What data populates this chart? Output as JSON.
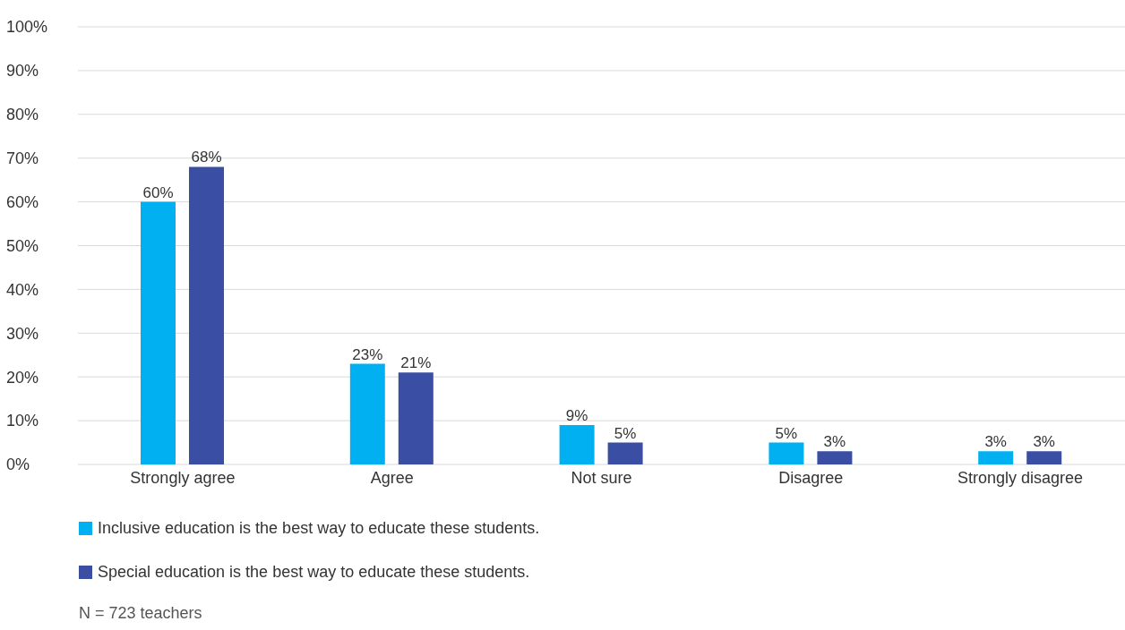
{
  "chart_data": {
    "type": "bar",
    "categories": [
      "Strongly agree",
      "Agree",
      "Not sure",
      "Disagree",
      "Strongly disagree"
    ],
    "series": [
      {
        "name": "Inclusive education is the best way to educate these students.",
        "color": "#00b0f0",
        "values": [
          60,
          23,
          9,
          5,
          3
        ],
        "value_labels": [
          "60%",
          "23%",
          "9%",
          "5%",
          "3%"
        ]
      },
      {
        "name": "Special education is the best way to educate these students.",
        "color": "#3a4fa3",
        "values": [
          68,
          21,
          5,
          3,
          3
        ],
        "value_labels": [
          "68%",
          "21%",
          "5%",
          "3%",
          "3%"
        ]
      }
    ],
    "ylim": [
      0,
      100
    ],
    "yticks": [
      {
        "value": 0,
        "label": "0%"
      },
      {
        "value": 10,
        "label": "10%"
      },
      {
        "value": 20,
        "label": "20%"
      },
      {
        "value": 30,
        "label": "30%"
      },
      {
        "value": 40,
        "label": "40%"
      },
      {
        "value": 50,
        "label": "50%"
      },
      {
        "value": 60,
        "label": "60%"
      },
      {
        "value": 70,
        "label": "70%"
      },
      {
        "value": 80,
        "label": "80%"
      },
      {
        "value": 90,
        "label": "90%"
      },
      {
        "value": 100,
        "label": "100%"
      }
    ],
    "grid": "y",
    "legend": "bottom",
    "annotations": [
      "N = 723 teachers"
    ]
  }
}
